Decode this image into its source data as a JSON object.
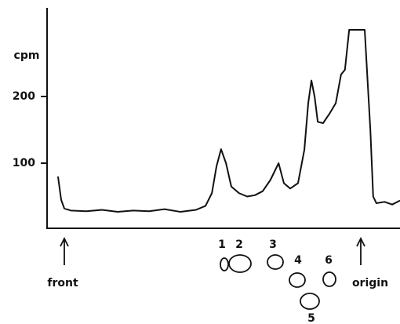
{
  "chart_data": {
    "type": "line",
    "y_label": "cpm",
    "ylim": [
      0,
      330
    ],
    "yticks": [
      100,
      200
    ],
    "xlim": [
      0,
      100
    ],
    "x": [
      3.1,
      4,
      4.9,
      6.7,
      11.1,
      15.6,
      20,
      24.4,
      28.9,
      33.3,
      37.8,
      42.2,
      44.9,
      46.7,
      48,
      49.3,
      50.7,
      52.2,
      54.4,
      56.7,
      58.9,
      61.1,
      63.3,
      65.6,
      67.1,
      68.9,
      71.1,
      72.9,
      74,
      74.9,
      75.8,
      76.7,
      78.2,
      80,
      81.8,
      83.3,
      84.4,
      85.6,
      90,
      91.6,
      92.4,
      93.3,
      95.6,
      97.8,
      100
    ],
    "series": [
      {
        "color": "#111111",
        "values": [
          80,
          45,
          32,
          29,
          28,
          30,
          27,
          29,
          28,
          31,
          27,
          30,
          36,
          55,
          95,
          121,
          100,
          65,
          55,
          50,
          52,
          58,
          75,
          100,
          70,
          62,
          70,
          120,
          190,
          224,
          200,
          162,
          160,
          174,
          190,
          233,
          240,
          300,
          300,
          150,
          50,
          40,
          42,
          38,
          44
        ]
      }
    ],
    "annotations": {
      "front": "front",
      "origin": "origin",
      "spots": [
        "1",
        "2",
        "3",
        "4",
        "5",
        "6"
      ]
    }
  }
}
